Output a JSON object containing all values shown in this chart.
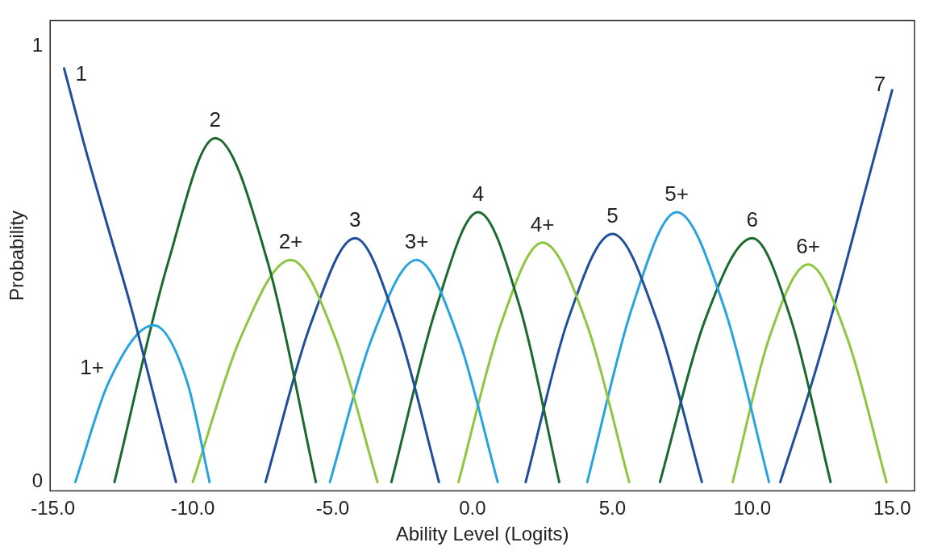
{
  "chart_data": {
    "type": "line",
    "xlabel": "Ability Level (Logits)",
    "ylabel": "Probability",
    "xlim": [
      -15.1,
      15.8
    ],
    "ylim": [
      -0.02,
      1.06
    ],
    "xticks": [
      {
        "value": -15,
        "label": "-15.0"
      },
      {
        "value": -10,
        "label": "-10.0"
      },
      {
        "value": -5,
        "label": "-5.0"
      },
      {
        "value": 0,
        "label": "0.0"
      },
      {
        "value": 5,
        "label": "5.0"
      },
      {
        "value": 10,
        "label": "10.0"
      },
      {
        "value": 15,
        "label": "15.0"
      }
    ],
    "yticks": [
      0,
      1
    ],
    "grid": false,
    "legend": false,
    "marker": "none",
    "line_style": "solid",
    "series": [
      {
        "name": "1",
        "color": "#1f4e9c",
        "x": [
          -14.6,
          -13.9,
          -13.1,
          -12.2,
          -11.4,
          -10.6
        ],
        "values": [
          0.95,
          0.78,
          0.6,
          0.4,
          0.2,
          0
        ]
      },
      {
        "name": "1+",
        "color": "#29a3e0",
        "x": [
          -14.2,
          -13.0,
          -11.4,
          -10.2,
          -9.4
        ],
        "values": [
          0,
          0.23,
          0.36,
          0.23,
          0
        ]
      },
      {
        "name": "2",
        "color": "#1a6a2e",
        "x": [
          -12.8,
          -10.9,
          -9.2,
          -7.3,
          -5.6
        ],
        "values": [
          0,
          0.5,
          0.79,
          0.5,
          0
        ]
      },
      {
        "name": "2+",
        "color": "#8dc63f",
        "x": [
          -10.0,
          -8.3,
          -6.5,
          -4.9,
          -3.4
        ],
        "values": [
          0,
          0.33,
          0.51,
          0.33,
          0
        ]
      },
      {
        "name": "3",
        "color": "#1f4e9c",
        "x": [
          -7.4,
          -5.8,
          -4.2,
          -2.7,
          -1.2
        ],
        "values": [
          0,
          0.36,
          0.56,
          0.36,
          0
        ]
      },
      {
        "name": "3+",
        "color": "#29a3e0",
        "x": [
          -5.1,
          -3.6,
          -2.0,
          -0.5,
          0.9
        ],
        "values": [
          0,
          0.33,
          0.51,
          0.33,
          0
        ]
      },
      {
        "name": "4",
        "color": "#1a6a2e",
        "x": [
          -2.9,
          -1.3,
          0.2,
          1.7,
          3.1
        ],
        "values": [
          0,
          0.4,
          0.62,
          0.4,
          0
        ]
      },
      {
        "name": "4+",
        "color": "#8dc63f",
        "x": [
          -0.5,
          1.0,
          2.5,
          4.1,
          5.6
        ],
        "values": [
          0,
          0.36,
          0.55,
          0.36,
          0
        ]
      },
      {
        "name": "5",
        "color": "#1f4e9c",
        "x": [
          1.9,
          3.4,
          5.0,
          6.6,
          8.2
        ],
        "values": [
          0,
          0.37,
          0.57,
          0.37,
          0
        ]
      },
      {
        "name": "5+",
        "color": "#29a3e0",
        "x": [
          4.1,
          5.7,
          7.3,
          9.0,
          10.6
        ],
        "values": [
          0,
          0.4,
          0.62,
          0.4,
          0
        ]
      },
      {
        "name": "6",
        "color": "#1a6a2e",
        "x": [
          6.7,
          8.3,
          10.0,
          11.4,
          12.8
        ],
        "values": [
          0,
          0.37,
          0.56,
          0.37,
          0
        ]
      },
      {
        "name": "6+",
        "color": "#8dc63f",
        "x": [
          9.3,
          10.6,
          12.0,
          13.4,
          14.8
        ],
        "values": [
          0,
          0.33,
          0.5,
          0.33,
          0
        ]
      },
      {
        "name": "7",
        "color": "#1f4e9c",
        "x": [
          11.0,
          12.0,
          13.0,
          14.0,
          15.0
        ],
        "values": [
          0,
          0.2,
          0.42,
          0.66,
          0.9
        ]
      }
    ]
  }
}
